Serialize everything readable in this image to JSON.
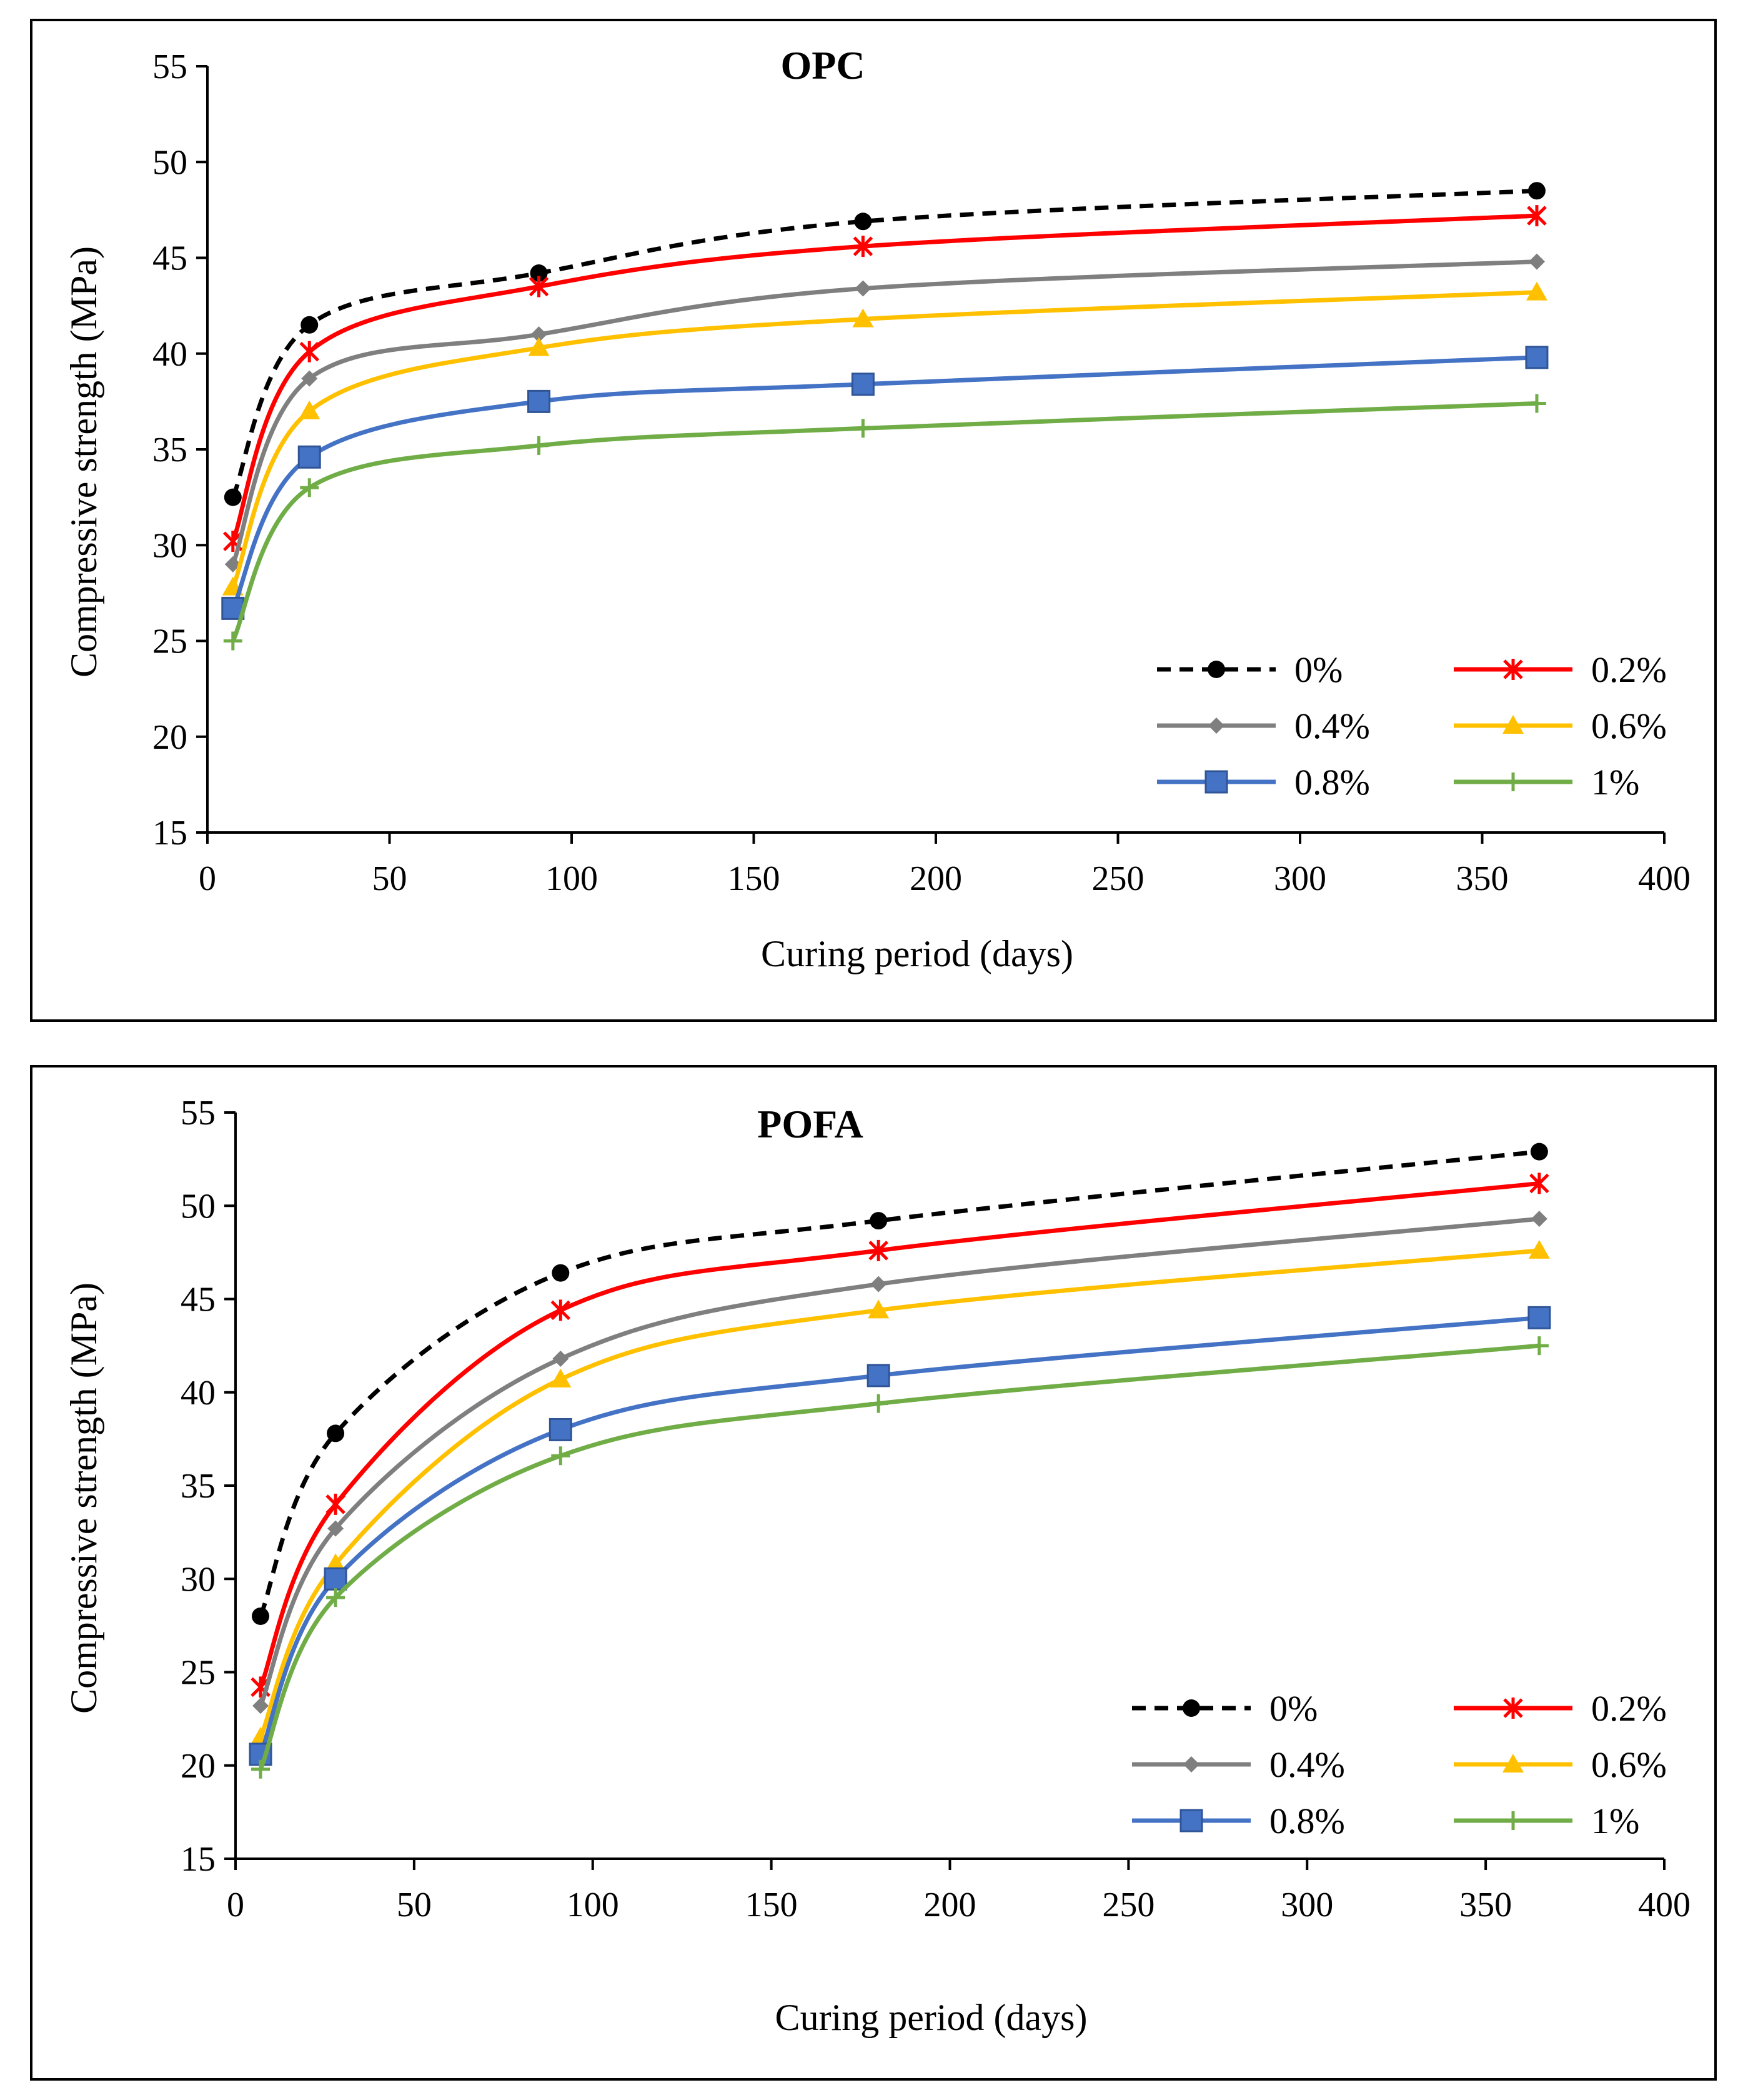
{
  "chart_data": [
    {
      "type": "line",
      "title": "OPC",
      "xlabel": "Curing period (days)",
      "ylabel": "Compressive strength (MPa)",
      "xlim": [
        0,
        400
      ],
      "ylim": [
        15,
        55
      ],
      "xticks": [
        0,
        50,
        100,
        150,
        200,
        250,
        300,
        350,
        400
      ],
      "yticks": [
        15,
        20,
        25,
        30,
        35,
        40,
        45,
        50,
        55
      ],
      "x": [
        7,
        28,
        91,
        180,
        365
      ],
      "legend_position": "bottom-right",
      "series": [
        {
          "name": "0%",
          "values": [
            32.5,
            41.5,
            44.2,
            46.9,
            48.5
          ],
          "color": "#000000",
          "dashed": true,
          "marker": "circle"
        },
        {
          "name": "0.2%",
          "values": [
            30.2,
            40.1,
            43.5,
            45.6,
            47.2
          ],
          "color": "#ff0000",
          "dashed": false,
          "marker": "asterisk"
        },
        {
          "name": "0.4%",
          "values": [
            29.0,
            38.7,
            41.0,
            43.4,
            44.8
          ],
          "color": "#7f7f7f",
          "dashed": false,
          "marker": "diamond"
        },
        {
          "name": "0.6%",
          "values": [
            27.8,
            37.0,
            40.3,
            41.8,
            43.2
          ],
          "color": "#ffc000",
          "dashed": false,
          "marker": "triangle"
        },
        {
          "name": "0.8%",
          "values": [
            26.7,
            34.6,
            37.5,
            38.4,
            39.8
          ],
          "color": "#4472c4",
          "dashed": false,
          "marker": "square"
        },
        {
          "name": "1%",
          "values": [
            25.0,
            33.0,
            35.2,
            36.1,
            37.4
          ],
          "color": "#70ad47",
          "dashed": false,
          "marker": "plus"
        }
      ]
    },
    {
      "type": "line",
      "title": "POFA",
      "xlabel": "Curing period (days)",
      "ylabel": "Compressive strength (MPa)",
      "xlim": [
        0,
        400
      ],
      "ylim": [
        15,
        55
      ],
      "xticks": [
        0,
        50,
        100,
        150,
        200,
        250,
        300,
        350,
        400
      ],
      "yticks": [
        15,
        20,
        25,
        30,
        35,
        40,
        45,
        50,
        55
      ],
      "x": [
        7,
        28,
        91,
        180,
        365
      ],
      "legend_position": "bottom-right",
      "series": [
        {
          "name": "0%",
          "values": [
            28.0,
            37.8,
            46.4,
            49.2,
            52.9
          ],
          "color": "#000000",
          "dashed": true,
          "marker": "circle"
        },
        {
          "name": "0.2%",
          "values": [
            24.2,
            34.0,
            44.4,
            47.6,
            51.2
          ],
          "color": "#ff0000",
          "dashed": false,
          "marker": "asterisk"
        },
        {
          "name": "0.4%",
          "values": [
            23.2,
            32.7,
            41.8,
            45.8,
            49.3
          ],
          "color": "#7f7f7f",
          "dashed": false,
          "marker": "diamond"
        },
        {
          "name": "0.6%",
          "values": [
            21.5,
            30.8,
            40.7,
            44.4,
            47.6
          ],
          "color": "#ffc000",
          "dashed": false,
          "marker": "triangle"
        },
        {
          "name": "0.8%",
          "values": [
            20.6,
            30.0,
            38.0,
            40.9,
            44.0
          ],
          "color": "#4472c4",
          "dashed": false,
          "marker": "square"
        },
        {
          "name": "1%",
          "values": [
            19.8,
            29.0,
            36.6,
            39.4,
            42.5
          ],
          "color": "#70ad47",
          "dashed": false,
          "marker": "plus"
        }
      ]
    }
  ]
}
